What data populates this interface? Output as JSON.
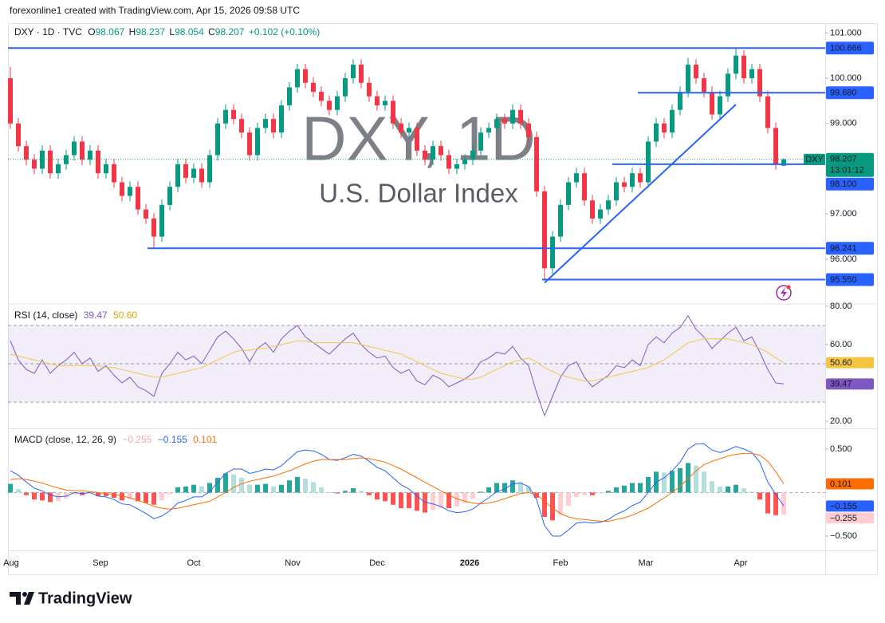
{
  "header": {
    "credit": "forexonline1 created with TradingView.com, Apr 15, 2026 09:58 UTC"
  },
  "footer": {
    "brand": "TradingView"
  },
  "chart_data": [
    {
      "type": "candlestick",
      "title": "DXY · 1D · TVC",
      "ohlc_labels": [
        "O",
        "H",
        "L",
        "C"
      ],
      "change": "+0.102 (+0.10%)",
      "watermark": "DXY, 1D",
      "subtitle": "U.S. Dollar Index",
      "symbol": "DXY",
      "countdown": "13:01:12",
      "up_color": "#089981",
      "down_color": "#f23645",
      "level_color": "#2962ff",
      "open": [
        100.0,
        99.0,
        98.5,
        98.2,
        98.0,
        98.4,
        97.9,
        98.1,
        98.3,
        98.6,
        98.2,
        98.4,
        97.9,
        98.1,
        97.7,
        97.4,
        97.6,
        97.1,
        96.9,
        96.5,
        97.2,
        97.6,
        98.1,
        97.8,
        98.0,
        97.7,
        98.3,
        99.0,
        99.3,
        99.1,
        98.8,
        98.3,
        98.9,
        99.1,
        98.8,
        99.4,
        99.8,
        100.2,
        99.9,
        99.7,
        99.5,
        99.3,
        99.6,
        100.0,
        100.3,
        99.9,
        99.6,
        99.4,
        99.5,
        99.0,
        98.8,
        98.9,
        98.4,
        98.2,
        98.5,
        98.3,
        98.0,
        98.1,
        98.2,
        98.4,
        98.8,
        98.9,
        99.1,
        99.0,
        99.3,
        99.0,
        98.7,
        97.5,
        95.8,
        96.5,
        97.2,
        97.7,
        97.9,
        97.3,
        96.9,
        97.1,
        97.3,
        97.7,
        97.6,
        97.9,
        97.7,
        98.6,
        99.0,
        98.8,
        99.3,
        99.7,
        100.3,
        100.0,
        99.7,
        99.2,
        99.6,
        100.1,
        100.5,
        100.0,
        100.2,
        99.6,
        98.9,
        98.067
      ],
      "high": [
        100.25,
        99.12,
        98.62,
        98.32,
        98.52,
        98.52,
        98.22,
        98.42,
        98.72,
        98.72,
        98.52,
        98.52,
        98.22,
        98.22,
        97.82,
        97.72,
        97.72,
        97.22,
        97.02,
        97.32,
        97.72,
        98.22,
        98.22,
        98.12,
        98.12,
        98.42,
        99.12,
        99.42,
        99.42,
        99.22,
        98.92,
        99.02,
        99.22,
        99.22,
        99.52,
        99.92,
        100.32,
        100.32,
        100.02,
        99.82,
        99.62,
        99.72,
        100.12,
        100.42,
        100.42,
        100.02,
        99.72,
        99.62,
        99.62,
        99.12,
        99.02,
        99.02,
        98.52,
        98.62,
        98.62,
        98.42,
        98.22,
        98.32,
        98.52,
        98.92,
        99.02,
        99.22,
        99.22,
        99.42,
        99.42,
        99.12,
        98.82,
        97.62,
        96.62,
        97.32,
        97.82,
        98.02,
        98.02,
        97.42,
        97.22,
        97.42,
        97.82,
        97.82,
        98.02,
        98.02,
        98.72,
        99.12,
        99.12,
        99.42,
        99.82,
        100.45,
        100.42,
        100.12,
        99.82,
        99.72,
        100.22,
        100.666,
        100.62,
        100.32,
        100.32,
        99.72,
        99.02,
        98.237
      ],
      "low": [
        98.88,
        98.38,
        98.08,
        97.88,
        97.88,
        97.78,
        97.78,
        97.98,
        98.18,
        98.08,
        98.08,
        97.78,
        97.78,
        97.58,
        97.28,
        97.28,
        96.98,
        96.78,
        96.25,
        96.38,
        97.08,
        97.48,
        97.68,
        97.68,
        97.58,
        97.58,
        98.18,
        98.88,
        98.98,
        98.68,
        98.18,
        98.18,
        98.78,
        98.68,
        98.68,
        99.28,
        99.68,
        99.78,
        99.58,
        99.38,
        99.18,
        99.18,
        99.48,
        99.88,
        99.78,
        99.48,
        99.28,
        99.28,
        98.88,
        98.68,
        98.68,
        98.28,
        98.08,
        98.08,
        98.18,
        97.88,
        97.88,
        97.98,
        98.08,
        98.28,
        98.68,
        98.78,
        98.88,
        98.88,
        98.88,
        98.58,
        97.38,
        95.55,
        95.68,
        96.38,
        97.08,
        97.58,
        97.18,
        96.78,
        96.78,
        96.98,
        97.18,
        97.48,
        97.48,
        97.58,
        97.58,
        98.48,
        98.68,
        98.68,
        99.18,
        99.58,
        99.88,
        99.58,
        99.08,
        99.08,
        99.48,
        99.98,
        99.88,
        99.88,
        99.48,
        98.78,
        97.98,
        98.054
      ],
      "close": [
        99.0,
        98.5,
        98.2,
        98.0,
        98.4,
        97.9,
        98.1,
        98.3,
        98.6,
        98.2,
        98.4,
        97.9,
        98.1,
        97.7,
        97.4,
        97.6,
        97.1,
        96.9,
        96.5,
        97.2,
        97.6,
        98.1,
        97.8,
        98.0,
        97.7,
        98.3,
        99.0,
        99.3,
        99.1,
        98.8,
        98.3,
        98.9,
        99.1,
        98.8,
        99.4,
        99.8,
        100.2,
        99.9,
        99.7,
        99.5,
        99.3,
        99.6,
        100.0,
        100.3,
        99.9,
        99.6,
        99.4,
        99.5,
        99.0,
        98.8,
        98.9,
        98.4,
        98.2,
        98.5,
        98.3,
        98.0,
        98.1,
        98.2,
        98.4,
        98.8,
        98.9,
        99.1,
        99.0,
        99.3,
        99.0,
        98.7,
        97.5,
        95.8,
        96.5,
        97.2,
        97.7,
        97.9,
        97.3,
        96.9,
        97.1,
        97.3,
        97.7,
        97.6,
        97.9,
        97.7,
        98.6,
        99.0,
        98.8,
        99.3,
        99.7,
        100.3,
        100.0,
        99.7,
        99.2,
        99.6,
        100.1,
        100.5,
        100.0,
        100.2,
        99.6,
        98.9,
        98.1,
        98.207
      ],
      "xlim": [
        -0.3,
        102.2
      ],
      "xticks": [
        {
          "value": 0.1,
          "label": "Aug"
        },
        {
          "value": 11.3,
          "label": "Sep"
        },
        {
          "value": 23,
          "label": "Oct"
        },
        {
          "value": 35.4,
          "label": "Nov"
        },
        {
          "value": 46,
          "label": "Dec"
        },
        {
          "value": 57.6,
          "label": "2026",
          "bold": true
        },
        {
          "value": 69,
          "label": "Feb"
        },
        {
          "value": 79.7,
          "label": "Mar"
        },
        {
          "value": 91.6,
          "label": "Apr"
        }
      ],
      "ylim": [
        95.03,
        101.2
      ],
      "yticks": [
        {
          "value": 101,
          "label": "101.000"
        },
        {
          "value": 100,
          "label": "100.000"
        },
        {
          "value": 99,
          "label": "99.000"
        },
        {
          "value": 97,
          "label": "97.000"
        },
        {
          "value": 96,
          "label": "96.000"
        }
      ],
      "levels": [
        {
          "value": 100.666,
          "x_start": -0.3
        },
        {
          "value": 99.68,
          "label": "99.680",
          "x_start": 78.7
        },
        {
          "value": 98.1,
          "label": "98.100",
          "x_start": 75.5
        },
        {
          "value": 96.241,
          "x_start": 17.2
        },
        {
          "value": 95.55,
          "label": "95.550",
          "x_start": 66.7
        }
      ],
      "trendline": {
        "x": [
          67,
          91
        ],
        "y": [
          95.48,
          99.42
        ]
      }
    },
    {
      "type": "line",
      "title": "RSI (14, close)",
      "ylim": [
        16.3,
        80.8
      ],
      "yticks": [
        {
          "value": 80,
          "label": "80.00"
        },
        {
          "value": 60,
          "label": "60.00"
        },
        {
          "value": 20,
          "label": "20.00"
        }
      ],
      "bands": [
        70,
        50,
        30
      ],
      "band_color": "#7e57c2",
      "series": [
        {
          "color": "#7e57c2",
          "style": "line",
          "values": [
            62,
            52,
            47,
            45,
            52,
            45,
            49,
            52,
            56,
            50,
            53,
            46,
            49,
            44,
            40,
            43,
            38,
            36,
            33,
            45,
            50,
            56,
            52,
            54,
            50,
            57,
            64,
            67,
            63,
            58,
            51,
            58,
            61,
            56,
            63,
            67,
            70,
            64,
            61,
            58,
            55,
            59,
            63,
            66,
            60,
            56,
            53,
            54,
            48,
            45,
            47,
            41,
            39,
            44,
            42,
            38,
            40,
            42,
            45,
            51,
            53,
            56,
            55,
            59,
            53,
            49,
            35,
            23,
            33,
            43,
            49,
            51,
            43,
            38,
            41,
            44,
            49,
            48,
            52,
            49,
            60,
            64,
            61,
            66,
            69,
            75,
            68,
            64,
            58,
            62,
            66,
            69,
            62,
            64,
            56,
            47,
            40,
            39.47
          ]
        },
        {
          "color": "#f5c542",
          "style": "line",
          "values": [
            55,
            54,
            53,
            52,
            51,
            50,
            49,
            49,
            49,
            49,
            49,
            49,
            48,
            48,
            47,
            46,
            45,
            44,
            43,
            43,
            44,
            45,
            46,
            47,
            48,
            50,
            52,
            54,
            56,
            57,
            57,
            58,
            58,
            59,
            60,
            61,
            62,
            62,
            61,
            61,
            61,
            61,
            61,
            61,
            60,
            59,
            58,
            57,
            56,
            55,
            53,
            51,
            49,
            47,
            45,
            44,
            43,
            42,
            42,
            43,
            45,
            47,
            49,
            51,
            52,
            53,
            51,
            48,
            46,
            44,
            43,
            42,
            41,
            41,
            42,
            43,
            44,
            45,
            46,
            47,
            48,
            50,
            52,
            55,
            58,
            61,
            62,
            63,
            63,
            63,
            63,
            62,
            61,
            60,
            58,
            56,
            53,
            50.6
          ],
          "value_labels": {
            "97": "50.60"
          }
        }
      ]
    },
    {
      "type": "line",
      "title": "MACD (close, 12, 26, 9)",
      "ylim": [
        -0.665,
        0.729
      ],
      "yticks": [
        {
          "value": 0.5,
          "label": "0.500"
        },
        {
          "value": -0.5,
          "label": "−0.500"
        }
      ],
      "baseline": 0,
      "series": [
        {
          "color": "#ffcdd2",
          "style": "histogram",
          "colors": [
            "#26a69a",
            "#b2dfdb",
            "#ffcdd2",
            "#ff5252"
          ],
          "values": [
            0.1,
            0.04,
            -0.03,
            -0.08,
            -0.09,
            -0.11,
            -0.1,
            -0.07,
            -0.02,
            -0.03,
            -0.01,
            -0.04,
            -0.04,
            -0.06,
            -0.09,
            -0.08,
            -0.1,
            -0.12,
            -0.14,
            -0.09,
            -0.02,
            0.06,
            0.07,
            0.09,
            0.07,
            0.11,
            0.17,
            0.22,
            0.21,
            0.17,
            0.09,
            0.09,
            0.1,
            0.07,
            0.09,
            0.14,
            0.18,
            0.16,
            0.12,
            0.06,
            0.0,
            -0.01,
            0.02,
            0.05,
            0.02,
            -0.03,
            -0.08,
            -0.1,
            -0.14,
            -0.18,
            -0.18,
            -0.21,
            -0.23,
            -0.2,
            -0.18,
            -0.18,
            -0.16,
            -0.12,
            -0.07,
            0.01,
            0.06,
            0.11,
            0.11,
            0.14,
            0.12,
            0.07,
            -0.06,
            -0.28,
            -0.32,
            -0.26,
            -0.15,
            -0.05,
            -0.03,
            -0.03,
            -0.01,
            0.02,
            0.06,
            0.08,
            0.11,
            0.11,
            0.18,
            0.24,
            0.23,
            0.25,
            0.28,
            0.34,
            0.31,
            0.24,
            0.13,
            0.07,
            0.07,
            0.09,
            0.05,
            0.01,
            -0.08,
            -0.24,
            -0.26,
            -0.255
          ],
          "value_labels": {
            "97": "−0.255"
          }
        },
        {
          "color": "#2962ff",
          "style": "line",
          "values": [
            0.25,
            0.2,
            0.12,
            0.05,
            0.02,
            -0.03,
            -0.05,
            -0.04,
            0.0,
            -0.01,
            0.0,
            -0.04,
            -0.05,
            -0.08,
            -0.13,
            -0.14,
            -0.19,
            -0.24,
            -0.3,
            -0.27,
            -0.21,
            -0.12,
            -0.09,
            -0.05,
            -0.05,
            0.01,
            0.12,
            0.22,
            0.27,
            0.27,
            0.22,
            0.24,
            0.27,
            0.26,
            0.31,
            0.39,
            0.47,
            0.49,
            0.48,
            0.44,
            0.38,
            0.37,
            0.4,
            0.44,
            0.42,
            0.36,
            0.29,
            0.25,
            0.17,
            0.09,
            0.04,
            -0.04,
            -0.11,
            -0.13,
            -0.16,
            -0.21,
            -0.23,
            -0.22,
            -0.19,
            -0.12,
            -0.06,
            0.01,
            0.04,
            0.1,
            0.11,
            0.07,
            -0.08,
            -0.38,
            -0.5,
            -0.5,
            -0.43,
            -0.35,
            -0.34,
            -0.35,
            -0.34,
            -0.31,
            -0.25,
            -0.21,
            -0.15,
            -0.11,
            0.0,
            0.12,
            0.17,
            0.25,
            0.35,
            0.5,
            0.56,
            0.56,
            0.49,
            0.46,
            0.49,
            0.53,
            0.5,
            0.46,
            0.35,
            0.12,
            -0.02,
            -0.155
          ],
          "value_labels": {
            "97": "−0.155"
          }
        },
        {
          "color": "#ff6d00",
          "style": "line",
          "values": [
            0.15,
            0.16,
            0.15,
            0.13,
            0.11,
            0.08,
            0.05,
            0.03,
            0.02,
            0.02,
            0.01,
            0.0,
            -0.01,
            -0.02,
            -0.04,
            -0.06,
            -0.09,
            -0.12,
            -0.16,
            -0.18,
            -0.19,
            -0.18,
            -0.16,
            -0.14,
            -0.12,
            -0.1,
            -0.05,
            0.0,
            0.06,
            0.1,
            0.13,
            0.15,
            0.17,
            0.19,
            0.22,
            0.25,
            0.29,
            0.33,
            0.36,
            0.38,
            0.38,
            0.38,
            0.38,
            0.39,
            0.4,
            0.39,
            0.37,
            0.35,
            0.31,
            0.27,
            0.22,
            0.17,
            0.12,
            0.07,
            0.02,
            -0.03,
            -0.07,
            -0.1,
            -0.12,
            -0.13,
            -0.12,
            -0.1,
            -0.07,
            -0.04,
            -0.01,
            0.0,
            -0.02,
            -0.1,
            -0.18,
            -0.24,
            -0.28,
            -0.3,
            -0.31,
            -0.32,
            -0.33,
            -0.33,
            -0.31,
            -0.29,
            -0.26,
            -0.22,
            -0.18,
            -0.12,
            -0.06,
            0.0,
            0.07,
            0.16,
            0.25,
            0.32,
            0.36,
            0.39,
            0.42,
            0.44,
            0.45,
            0.45,
            0.43,
            0.36,
            0.24,
            0.101
          ]
        }
      ]
    }
  ]
}
